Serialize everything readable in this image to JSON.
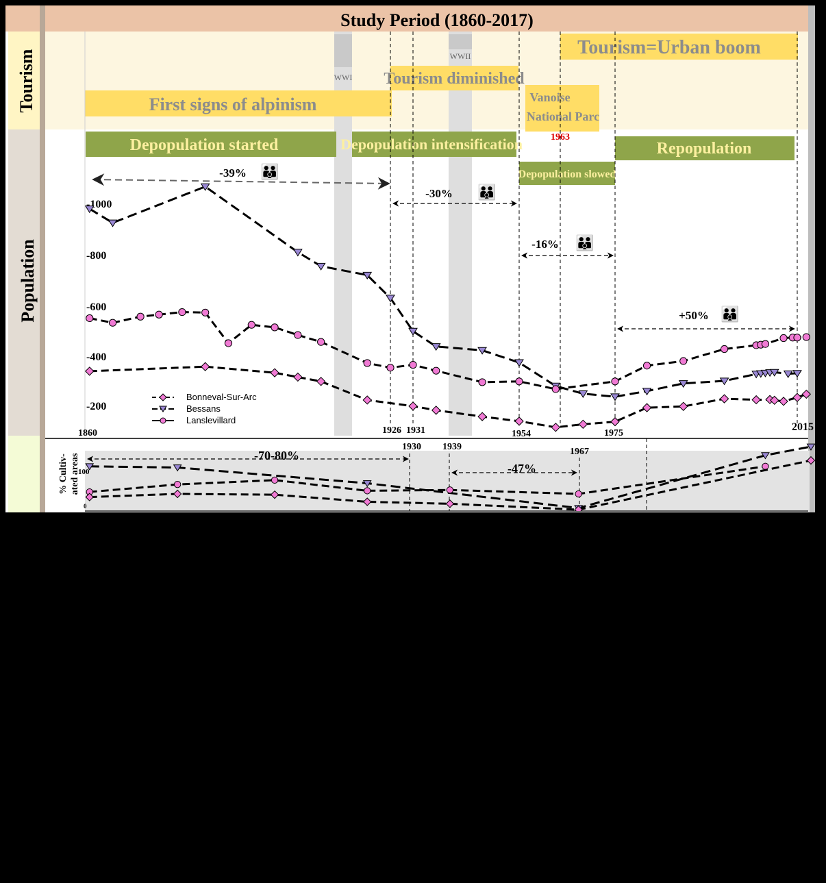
{
  "colors": {
    "header_band": "#ebc3a7",
    "tourism_band": "#fdf6e0",
    "tourism_label_bg": "#fff5c4",
    "population_label_bg": "#e3dcd3",
    "agri_label_bg": "#f4fbd6",
    "yellow_bar": "#ffdd66",
    "yellow_text": "#8c8c8c",
    "green_bar": "#8fa54a",
    "green_text": "#fdf0a0",
    "war_shade": "#dedede",
    "agri_shade": "#e3e3e3",
    "marker_pink": "#f07ad4",
    "marker_purple": "#9a88d4",
    "red_year": "#e00000",
    "right_border": "#bdbdbd"
  },
  "header": {
    "title": "Study Period (1860-2017)"
  },
  "row_labels": {
    "tourism": "Tourism",
    "population": "Population",
    "agri_axis": "% Cultiv-\nated areas"
  },
  "tourism_events": {
    "alpinism": "First signs of alpinism",
    "diminished": "Tourism diminished",
    "vanoise_line1": "Vanoise",
    "vanoise_line2": "National Parc",
    "vanoise_year": "1963",
    "urban_boom": "Tourism=Urban boom",
    "wwi": "WWI",
    "wwii": "WWII"
  },
  "population_phases": {
    "started": "Depopulation started",
    "intensification": "Depopulation intensification",
    "slowed": "Depopulation slowed",
    "repopulation": "Repopulation"
  },
  "change_annotations": [
    "-39%",
    "-30%",
    "-16%",
    "+50%"
  ],
  "agri_annotations": [
    "-70-80%",
    "-47%"
  ],
  "year_labels_population": [
    "1860",
    "1926",
    "1931",
    "1954",
    "1975",
    "2015"
  ],
  "year_labels_agri": [
    "1930",
    "1939",
    "1967"
  ],
  "y_ticks_population": [
    "-1000",
    "-800",
    "-600",
    "-400",
    "-200"
  ],
  "y_ticks_agri": [
    "100",
    "0"
  ],
  "chart_data": [
    {
      "type": "line",
      "title": "",
      "xlabel": "",
      "ylabel": "",
      "xlim": [
        1860,
        2017
      ],
      "ylim": [
        150,
        1100
      ],
      "legend": "bottom-left",
      "series": [
        {
          "name": "Bonneval-Sur-Arc",
          "marker": "diamond",
          "x": [
            1861,
            1886,
            1901,
            1906,
            1911,
            1921,
            1931,
            1936,
            1946,
            1954,
            1962,
            1968,
            1975,
            1982,
            1990,
            1999,
            2006,
            2009,
            2010,
            2012,
            2015,
            2017
          ],
          "y": [
            348,
            366,
            342,
            325,
            308,
            235,
            211,
            195,
            170,
            152,
            128,
            140,
            150,
            205,
            210,
            240,
            236,
            237,
            234,
            230,
            245,
            258
          ]
        },
        {
          "name": "Bessans",
          "marker": "triangle",
          "x": [
            1861,
            1866,
            1886,
            1906,
            1911,
            1921,
            1926,
            1931,
            1936,
            1946,
            1954,
            1962,
            1968,
            1975,
            1982,
            1990,
            1999,
            2006,
            2007,
            2008,
            2009,
            2010,
            2013,
            2015
          ],
          "y": [
            985,
            930,
            1072,
            815,
            760,
            725,
            635,
            505,
            445,
            430,
            382,
            290,
            260,
            248,
            270,
            300,
            310,
            337,
            339,
            341,
            343,
            344,
            338,
            340
          ]
        },
        {
          "name": "Lanslevillard",
          "marker": "circle",
          "x": [
            1861,
            1866,
            1872,
            1876,
            1881,
            1886,
            1891,
            1896,
            1901,
            1906,
            1911,
            1921,
            1926,
            1931,
            1936,
            1946,
            1954,
            1962,
            1975,
            1982,
            1990,
            1999,
            2006,
            2007,
            2008,
            2012,
            2014,
            2015,
            2017
          ],
          "y": [
            556,
            538,
            562,
            570,
            580,
            578,
            458,
            530,
            520,
            490,
            463,
            380,
            362,
            373,
            350,
            305,
            308,
            278,
            308,
            370,
            388,
            435,
            450,
            452,
            455,
            478,
            480,
            480,
            482
          ]
        }
      ]
    },
    {
      "type": "line",
      "title": "",
      "xlabel": "",
      "ylabel": "% Cultiv-\nated areas",
      "xlim": [
        1860,
        2017
      ],
      "ylim": [
        0,
        150
      ],
      "series": [
        {
          "name": "Bessans",
          "marker": "triangle",
          "x": [
            1861,
            1880,
            1921,
            1967,
            2008,
            2018
          ],
          "y": [
            110,
            107,
            67,
            4,
            138,
            160
          ]
        },
        {
          "name": "Lanslevillard",
          "marker": "circle",
          "x": [
            1861,
            1880,
            1901,
            1921,
            1939,
            1967,
            2008
          ],
          "y": [
            45,
            64,
            75,
            48,
            50,
            40,
            110
          ]
        },
        {
          "name": "Bonneval-Sur-Arc",
          "marker": "diamond",
          "x": [
            1861,
            1880,
            1901,
            1921,
            1939,
            1967,
            2018
          ],
          "y": [
            32,
            40,
            38,
            20,
            15,
            0,
            125
          ]
        }
      ]
    }
  ]
}
